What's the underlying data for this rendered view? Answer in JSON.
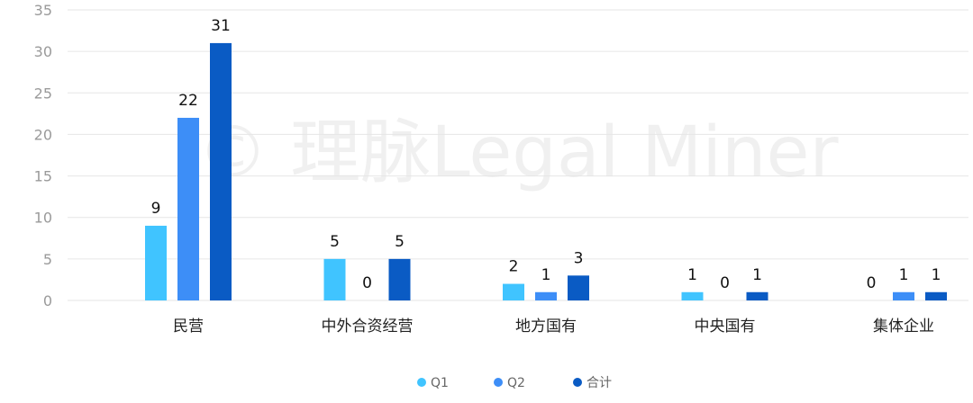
{
  "watermark": "© 理脉Legal Miner",
  "colors": {
    "q1": "#40c4ff",
    "q2": "#3d8ef7",
    "total": "#0a5bc4",
    "grid": "#e6e6e6"
  },
  "chart_data": {
    "type": "bar",
    "categories": [
      "民营",
      "中外合资经营",
      "地方国有",
      "中央国有",
      "集体企业"
    ],
    "series": [
      {
        "name": "Q1",
        "values": [
          9,
          5,
          2,
          1,
          0
        ]
      },
      {
        "name": "Q2",
        "values": [
          22,
          0,
          1,
          0,
          1
        ]
      },
      {
        "name": "合计",
        "values": [
          31,
          5,
          3,
          1,
          1
        ]
      }
    ],
    "ylim": [
      0,
      35
    ],
    "yticks": [
      0,
      5,
      10,
      15,
      20,
      25,
      30,
      35
    ],
    "grid": true,
    "legend": "bottom-center"
  }
}
